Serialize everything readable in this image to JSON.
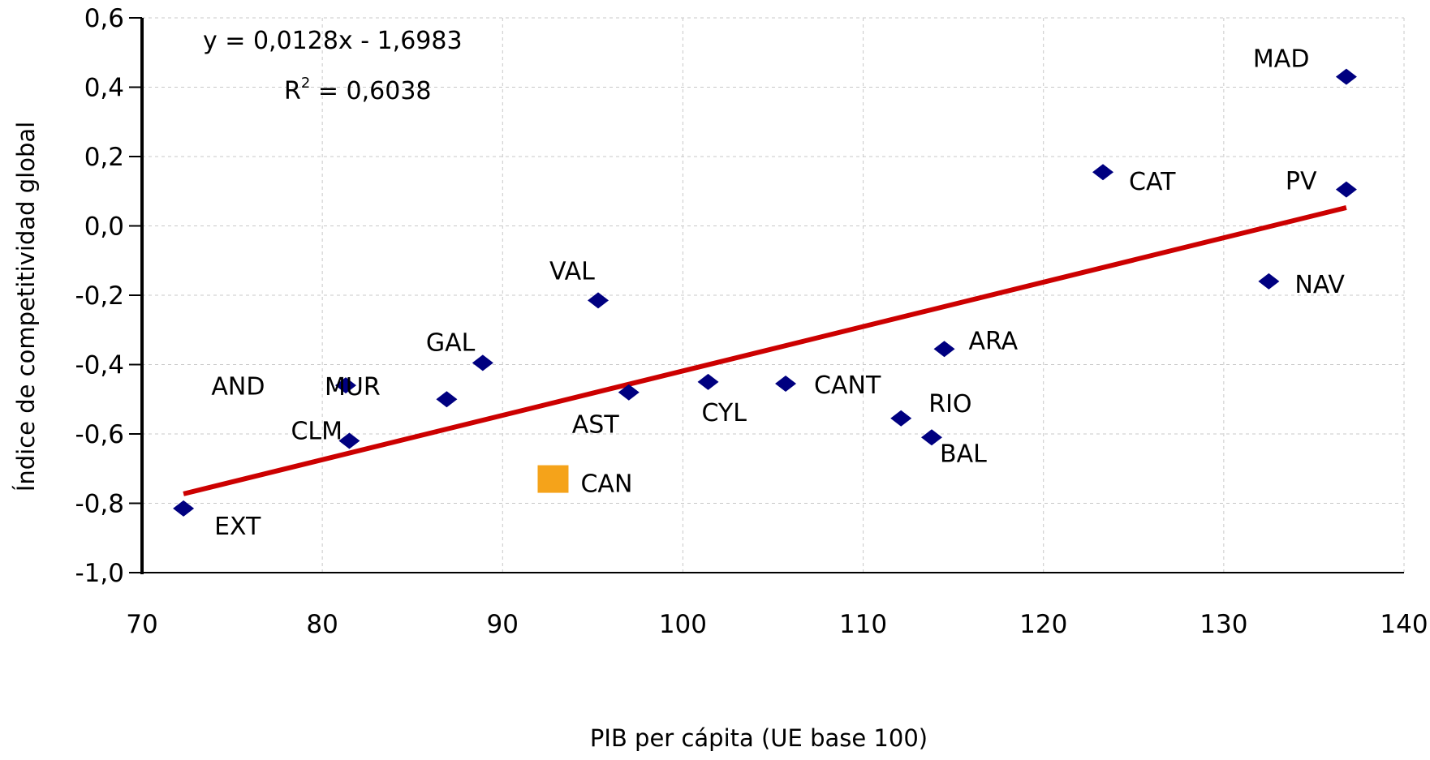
{
  "chart_data": {
    "type": "scatter",
    "xlabel": "PIB per cápita (UE base 100)",
    "ylabel": "Índice de competitividad global",
    "xlim": [
      70,
      140
    ],
    "ylim": [
      -1.0,
      0.6
    ],
    "x_ticks": [
      70,
      80,
      90,
      100,
      110,
      120,
      130,
      140
    ],
    "x_tick_labels": [
      "70",
      "80",
      "90",
      "100",
      "110",
      "120",
      "130",
      "140"
    ],
    "y_ticks": [
      -1.0,
      -0.8,
      -0.6,
      -0.4,
      -0.2,
      0.0,
      0.2,
      0.4,
      0.6
    ],
    "y_tick_labels": [
      "-1,0",
      "-0,8",
      "-0,6",
      "-0,4",
      "-0,2",
      "0,0",
      "0,2",
      "0,4",
      "0,6"
    ],
    "grid": "both-dashed",
    "colors": {
      "points": "#000080",
      "highlight": "#F5A31A",
      "trendline": "#CC0000"
    },
    "points": [
      {
        "label": "MAD",
        "x": 136.8,
        "y": 0.43,
        "highlight": false
      },
      {
        "label": "CAT",
        "x": 123.3,
        "y": 0.155,
        "highlight": false
      },
      {
        "label": "PV",
        "x": 136.8,
        "y": 0.105,
        "highlight": false
      },
      {
        "label": "NAV",
        "x": 132.5,
        "y": -0.16,
        "highlight": false
      },
      {
        "label": "VAL",
        "x": 95.3,
        "y": -0.215,
        "highlight": false
      },
      {
        "label": "ARA",
        "x": 114.5,
        "y": -0.355,
        "highlight": false
      },
      {
        "label": "GAL",
        "x": 88.9,
        "y": -0.395,
        "highlight": false
      },
      {
        "label": "CYL",
        "x": 101.4,
        "y": -0.45,
        "highlight": false
      },
      {
        "label": "CANT",
        "x": 105.7,
        "y": -0.455,
        "highlight": false
      },
      {
        "label": "MUR",
        "x": 81.3,
        "y": -0.46,
        "highlight": false
      },
      {
        "label": "AST",
        "x": 97.0,
        "y": -0.48,
        "highlight": false
      },
      {
        "label": "AND",
        "x": 86.9,
        "y": -0.5,
        "highlight": false
      },
      {
        "label": "RIO",
        "x": 112.1,
        "y": -0.555,
        "highlight": false
      },
      {
        "label": "BAL",
        "x": 113.8,
        "y": -0.61,
        "highlight": false
      },
      {
        "label": "CLM",
        "x": 81.5,
        "y": -0.62,
        "highlight": false
      },
      {
        "label": "CAN",
        "x": 92.8,
        "y": -0.73,
        "highlight": true
      },
      {
        "label": "EXT",
        "x": 72.3,
        "y": -0.815,
        "highlight": false
      }
    ],
    "trendline": {
      "slope": 0.0128,
      "intercept": -1.6983,
      "x_range": [
        72.3,
        136.8
      ],
      "equation": "y = 0,0128x - 1,6983",
      "r2_prefix": "R",
      "r2_sup": "2",
      "r2_value": " = 0,6038"
    }
  }
}
